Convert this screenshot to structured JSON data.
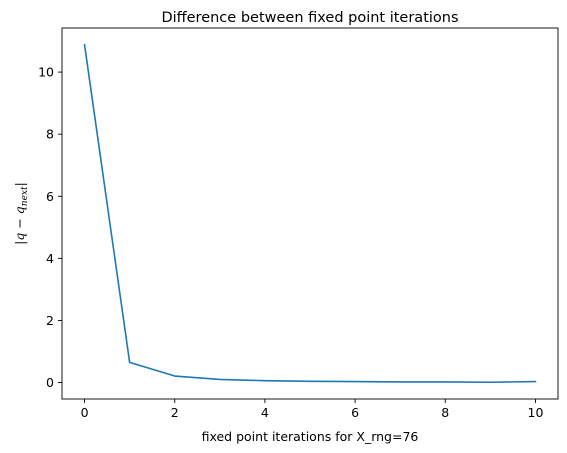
{
  "chart_data": {
    "type": "line",
    "title": "Difference between fixed point iterations",
    "xlabel": "fixed point iterations for X_rng=76",
    "ylabel": {
      "main": "|q − q",
      "subscript": "next",
      "close": "|"
    },
    "x": [
      0,
      1,
      2,
      3,
      4,
      5,
      6,
      7,
      8,
      9,
      10
    ],
    "series": [
      {
        "values": [
          10.88,
          0.65,
          0.21,
          0.1,
          0.06,
          0.04,
          0.03,
          0.02,
          0.02,
          0.01,
          0.03
        ]
      }
    ],
    "xlim": [
      -0.5,
      10.5
    ],
    "ylim": [
      -0.53,
      11.42
    ],
    "xticks": [
      "0",
      "2",
      "4",
      "6",
      "8",
      "10"
    ],
    "yticks": [
      "0",
      "2",
      "4",
      "6",
      "8",
      "10"
    ],
    "grid": false,
    "colors": {
      "line": "#1f77b4",
      "axes": "#000000"
    }
  }
}
